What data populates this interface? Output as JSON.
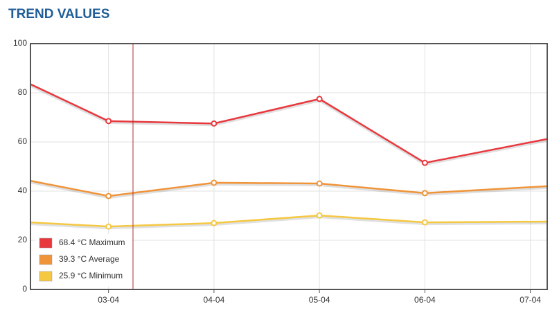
{
  "chart_data": {
    "type": "line",
    "title": "TREND VALUES",
    "x": [
      2.26,
      3,
      4,
      5,
      6,
      7.16
    ],
    "xlim": [
      2.26,
      7.16
    ],
    "xticks": [
      {
        "value": 3,
        "label": "03-04"
      },
      {
        "value": 4,
        "label": "04-04"
      },
      {
        "value": 5,
        "label": "05-04"
      },
      {
        "value": 6,
        "label": "06-04"
      },
      {
        "value": 7,
        "label": "07-04"
      }
    ],
    "ylim": [
      0,
      100
    ],
    "yticks": [
      0,
      20,
      40,
      60,
      80,
      100
    ],
    "grid": true,
    "legend": "lower-left",
    "series": [
      {
        "name": "68.4 °C Maximum",
        "color": "#e8383d",
        "values": [
          83.5,
          68.5,
          67.5,
          77.5,
          51.5,
          61.2
        ]
      },
      {
        "name": "39.3 °C Average",
        "color": "#f0943a",
        "values": [
          44.2,
          38,
          43.4,
          43.1,
          39.2,
          42
        ]
      },
      {
        "name": "25.9 °C Minimum",
        "color": "#f5c842",
        "values": [
          27.3,
          25.6,
          27,
          30.1,
          27.3,
          27.6
        ]
      }
    ]
  }
}
